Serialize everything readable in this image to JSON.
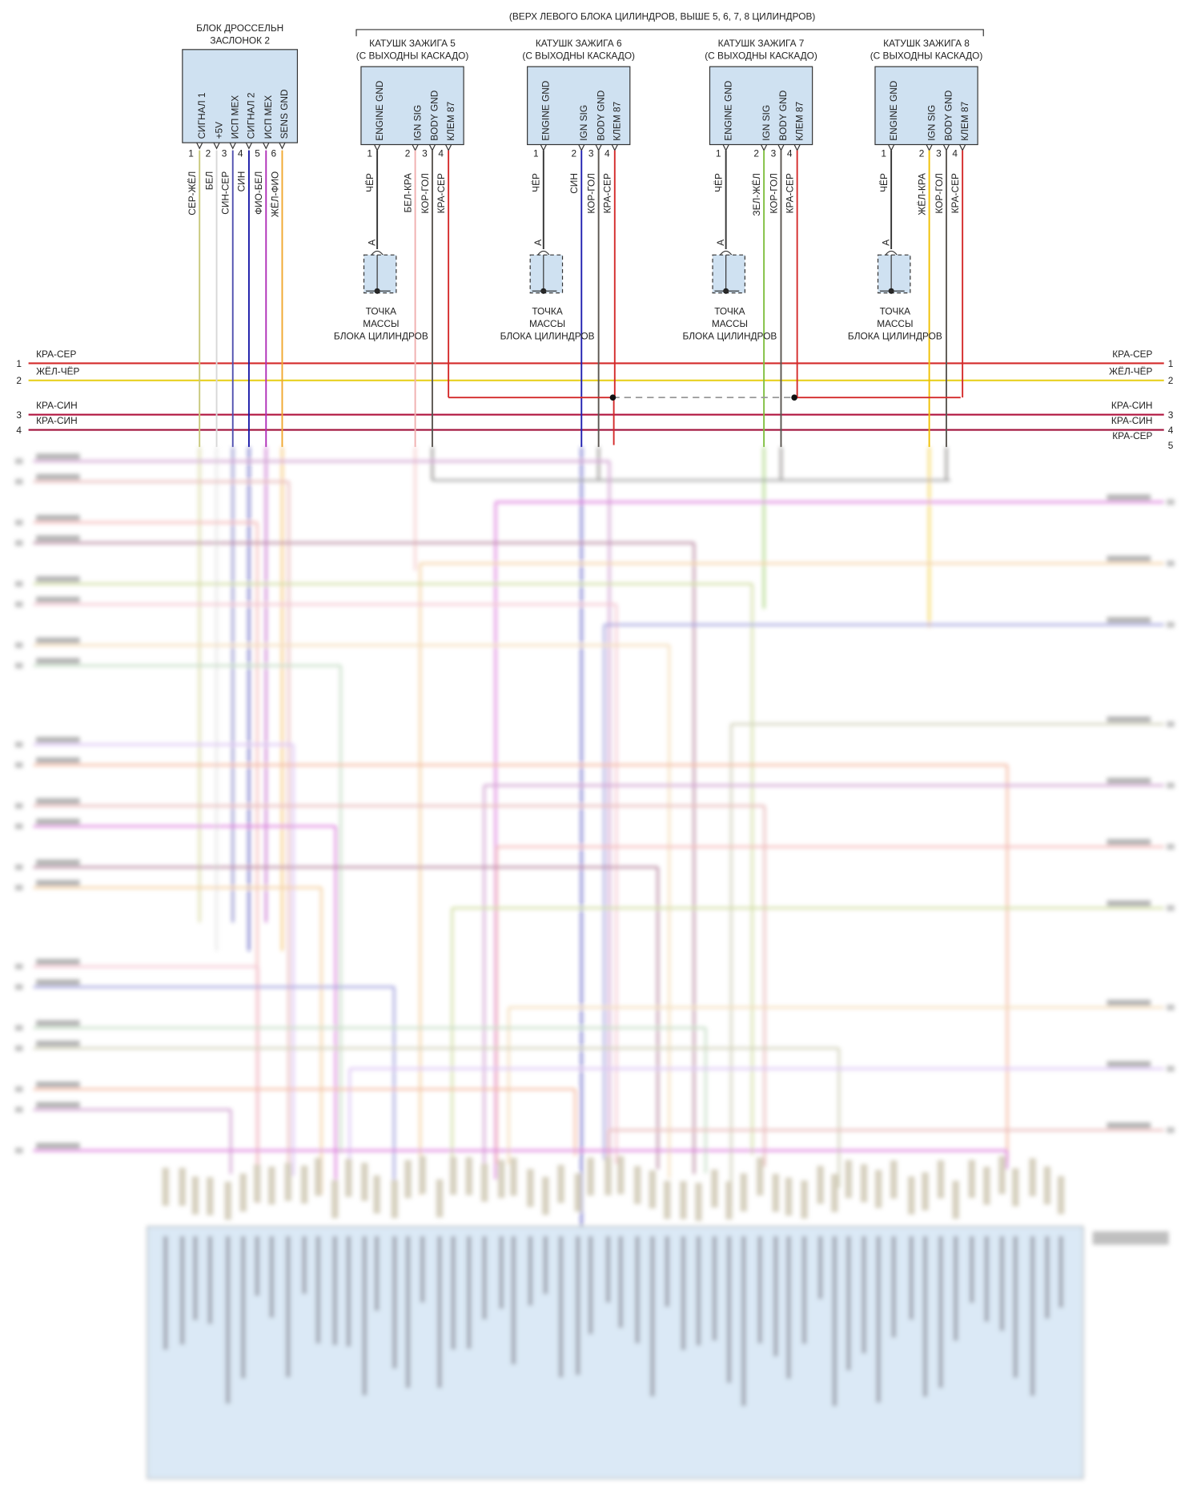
{
  "header_note": "(ВЕРХ ЛЕВОГО БЛОКА ЦИЛИНДРОВ, ВЫШЕ 5, 6, 7, 8 ЦИЛИНДРОВ)",
  "throttle_body": {
    "title": [
      "БЛОК ДРОССЕЛЬН",
      "ЗАСЛОНОК 2"
    ],
    "pins": [
      {
        "number": 1,
        "name": "СИГНАЛ 1",
        "wire": "СЕР-ЖЁЛ"
      },
      {
        "number": 2,
        "name": "+5V",
        "wire": "БЕЛ"
      },
      {
        "number": 3,
        "name": "ИСП МЕХ",
        "wire": "СИН-СЕР"
      },
      {
        "number": 4,
        "name": "СИГНАЛ 2",
        "wire": "СИН"
      },
      {
        "number": 5,
        "name": "ИСП МЕХ",
        "wire": "ФИО-БЕЛ"
      },
      {
        "number": 6,
        "name": "SENS GND",
        "wire": "ЖЁЛ-ФИО"
      }
    ]
  },
  "coils": [
    {
      "title": [
        "КАТУШК ЗАЖИГА 5",
        "(С ВЫХОДНЫ КАСКАДО)"
      ],
      "pins": [
        {
          "number": 1,
          "name": "ENGINE GND",
          "wire": "ЧЁР"
        },
        {
          "number": 2,
          "name": "IGN SIG",
          "wire": "БЕЛ-КРА"
        },
        {
          "number": 3,
          "name": "BODY GND",
          "wire": "КОР-ГОЛ"
        },
        {
          "number": 4,
          "name": "КЛЕМ 87",
          "wire": "КРА-СЕР"
        }
      ],
      "ground": {
        "connector": "A",
        "label": [
          "ТОЧКА",
          "МАССЫ",
          "БЛОКА ЦИЛИНДРОВ"
        ]
      }
    },
    {
      "title": [
        "КАТУШК ЗАЖИГА 6",
        "(С ВЫХОДНЫ КАСКАДО)"
      ],
      "pins": [
        {
          "number": 1,
          "name": "ENGINE GND",
          "wire": "ЧЁР"
        },
        {
          "number": 2,
          "name": "IGN SIG",
          "wire": "СИН"
        },
        {
          "number": 3,
          "name": "BODY GND",
          "wire": "КОР-ГОЛ"
        },
        {
          "number": 4,
          "name": "КЛЕМ 87",
          "wire": "КРА-СЕР"
        }
      ],
      "ground": {
        "connector": "A",
        "label": [
          "ТОЧКА",
          "МАССЫ",
          "БЛОКА ЦИЛИНДРОВ"
        ]
      }
    },
    {
      "title": [
        "КАТУШК ЗАЖИГА 7",
        "(С ВЫХОДНЫ КАСКАДО)"
      ],
      "pins": [
        {
          "number": 1,
          "name": "ENGINE GND",
          "wire": "ЧЁР"
        },
        {
          "number": 2,
          "name": "IGN SIG",
          "wire": "ЗЕЛ-ЖЁЛ"
        },
        {
          "number": 3,
          "name": "BODY GND",
          "wire": "КОР-ГОЛ"
        },
        {
          "number": 4,
          "name": "КЛЕМ 87",
          "wire": "КРА-СЕР"
        }
      ],
      "ground": {
        "connector": "A",
        "label": [
          "ТОЧКА",
          "МАССЫ",
          "БЛОКА ЦИЛИНДРОВ"
        ]
      }
    },
    {
      "title": [
        "КАТУШК ЗАЖИГА 8",
        "(С ВЫХОДНЫ КАСКАДО)"
      ],
      "pins": [
        {
          "number": 1,
          "name": "ENGINE GND",
          "wire": "ЧЁР"
        },
        {
          "number": 2,
          "name": "IGN SIG",
          "wire": "ЖЁЛ-КРА"
        },
        {
          "number": 3,
          "name": "BODY GND",
          "wire": "КОР-ГОЛ"
        },
        {
          "number": 4,
          "name": "КЛЕМ 87",
          "wire": "КРА-СЕР"
        }
      ],
      "ground": {
        "connector": "A",
        "label": [
          "ТОЧКА",
          "МАССЫ",
          "БЛОКА ЦИЛИНДРОВ"
        ]
      }
    }
  ],
  "bus_lines": {
    "left": [
      {
        "number": 1,
        "wire": "КРА-СЕР"
      },
      {
        "number": 2,
        "wire": "ЖЁЛ-ЧЁР"
      },
      {
        "number": 3,
        "wire": "КРА-СИН"
      },
      {
        "number": 4,
        "wire": "КРА-СИН"
      }
    ],
    "right": [
      {
        "number": 1,
        "wire": "КРА-СЕР"
      },
      {
        "number": 2,
        "wire": "ЖЁЛ-ЧЁР"
      },
      {
        "number": 3,
        "wire": "КРА-СИН"
      },
      {
        "number": 4,
        "wire": "КРА-СИН"
      },
      {
        "number": 5,
        "wire": "КРА-СЕР"
      }
    ]
  }
}
